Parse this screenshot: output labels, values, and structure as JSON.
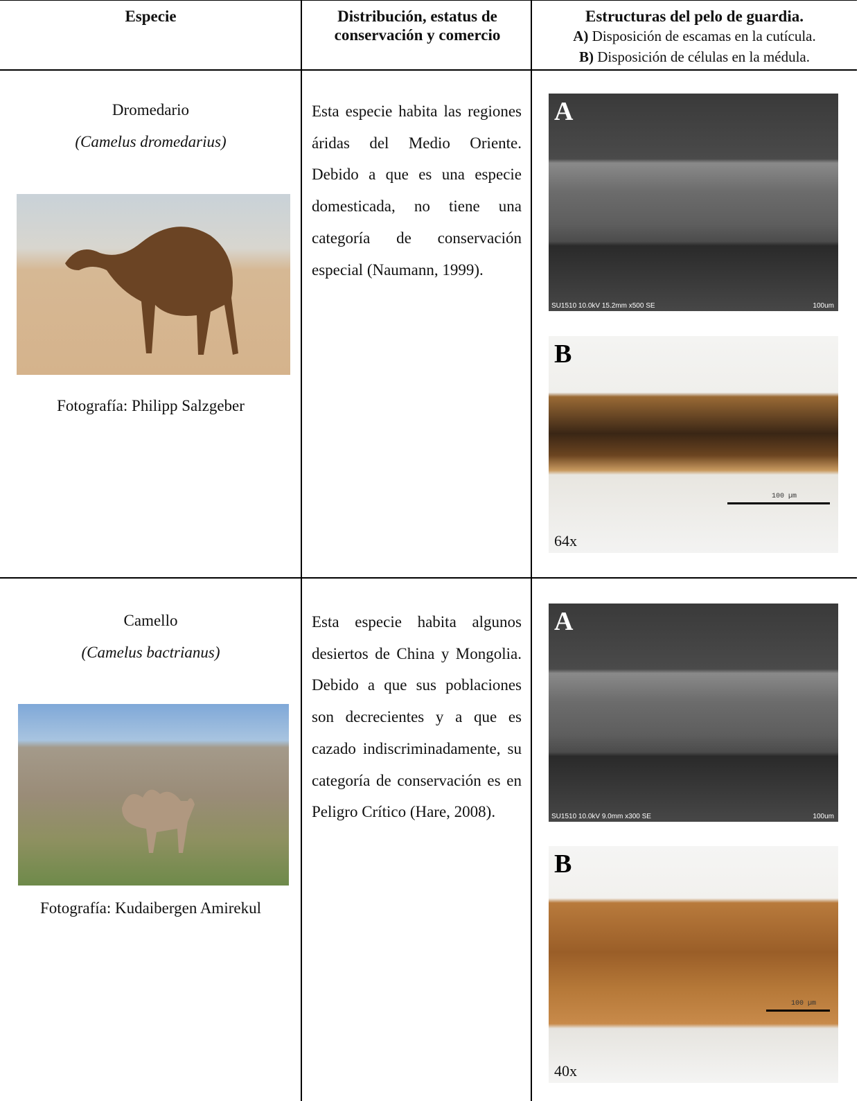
{
  "table": {
    "header": {
      "species": "Especie",
      "distribution": "Distribución, estatus de conservación y comercio",
      "structures": {
        "title": "Estructuras del pelo de guardia.",
        "a_key": "A)",
        "a_text": "Disposición de escamas en la cutícula.",
        "b_key": "B)",
        "b_text": "Disposición de células en la médula."
      }
    },
    "rows": [
      {
        "common_name": "Dromedario",
        "scientific_name": "(Camelus dromedarius)",
        "photo_credit": "Fotografía: Philipp Salzgeber",
        "description": "Esta especie habita las regiones áridas del Medio Oriente. Debido a que es una especie domesticada, no tiene una categoría de conservación especial (Naumann, 1999).",
        "panel_a": {
          "label": "A",
          "caption": "SU1510 10.0kV 15.2mm x500 SE",
          "scale": "100um"
        },
        "panel_b": {
          "label": "B",
          "scale": "100 µm",
          "magnification": "64x"
        }
      },
      {
        "common_name": "Camello",
        "scientific_name": "(Camelus bactrianus)",
        "photo_credit": "Fotografía: Kudaibergen Amirekul",
        "description": "Esta especie habita algunos desiertos de China y Mongolia. Debido a que sus poblaciones son decrecientes y a que es cazado indiscriminadamente, su categoría de conservación es en Peligro Crítico (Hare, 2008).",
        "panel_a": {
          "label": "A",
          "caption": "SU1510 10.0kV 9.0mm x300 SE",
          "scale": "100um"
        },
        "panel_b": {
          "label": "B",
          "scale": "100 µm",
          "magnification": "40x"
        }
      }
    ]
  }
}
